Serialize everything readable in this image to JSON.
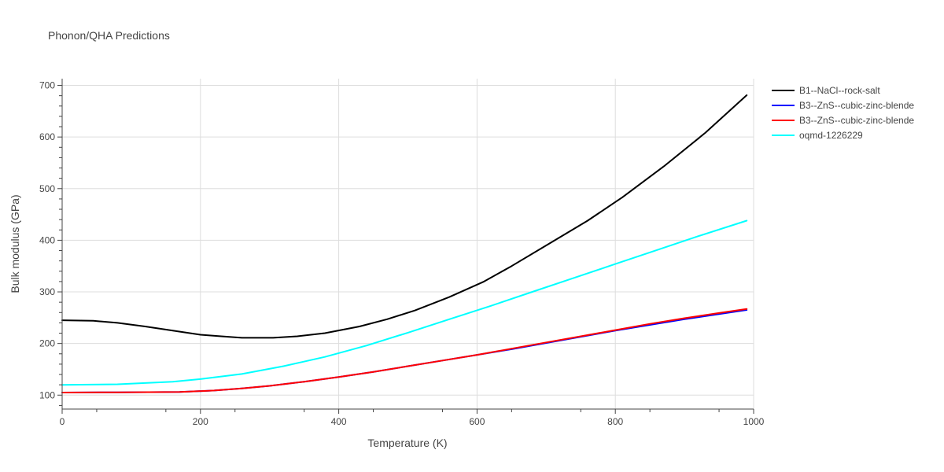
{
  "chart_data": {
    "type": "line",
    "title": "Phonon/QHA Predictions",
    "xlabel": "Temperature (K)",
    "ylabel": "Bulk modulus (GPa)",
    "xlim": [
      0,
      1000
    ],
    "ylim": [
      73,
      713
    ],
    "x_ticks": [
      0,
      200,
      400,
      600,
      800,
      1000
    ],
    "y_ticks": [
      100,
      200,
      300,
      400,
      500,
      600,
      700
    ],
    "grid": true,
    "legend_position": "top-right",
    "series": [
      {
        "name": "B1--NaCl--rock-salt",
        "color": "#000000",
        "x": [
          0,
          45,
          80,
          120,
          160,
          200,
          230,
          260,
          305,
          340,
          380,
          430,
          470,
          510,
          560,
          610,
          650,
          700,
          760,
          810,
          870,
          930,
          990
        ],
        "y": [
          245,
          244,
          240,
          233,
          225,
          217,
          214,
          211,
          211,
          214,
          220,
          233,
          247,
          264,
          290,
          320,
          350,
          390,
          438,
          483,
          543,
          608,
          681
        ]
      },
      {
        "name": "B3--ZnS--cubic-zinc-blende",
        "color": "#0000ff",
        "x": [
          0,
          80,
          170,
          220,
          260,
          300,
          350,
          400,
          450,
          500,
          550,
          600,
          650,
          700,
          750,
          800,
          850,
          900,
          950,
          990
        ],
        "y": [
          105,
          105.5,
          106,
          109,
          113,
          118,
          126,
          135,
          145,
          156,
          167,
          178,
          189,
          201,
          213,
          225,
          236,
          247,
          257,
          265
        ]
      },
      {
        "name": "B3--ZnS--cubic-zinc-blende",
        "color": "#ff0000",
        "x": [
          0,
          80,
          170,
          220,
          260,
          300,
          350,
          400,
          450,
          500,
          550,
          600,
          650,
          700,
          750,
          800,
          850,
          900,
          950,
          990
        ],
        "y": [
          105,
          105.5,
          106,
          109,
          113,
          118,
          126,
          135,
          145,
          156,
          167,
          178,
          190,
          202,
          214,
          226,
          238,
          249,
          259,
          267
        ]
      },
      {
        "name": "oqmd-1226229",
        "color": "#00ffff",
        "x": [
          0,
          80,
          160,
          200,
          260,
          320,
          380,
          440,
          500,
          560,
          620,
          680,
          740,
          800,
          860,
          920,
          990
        ],
        "y": [
          120,
          121,
          126,
          131,
          141,
          156,
          174,
          196,
          221,
          247,
          273,
          300,
          327,
          354,
          381,
          408,
          438
        ]
      }
    ]
  }
}
